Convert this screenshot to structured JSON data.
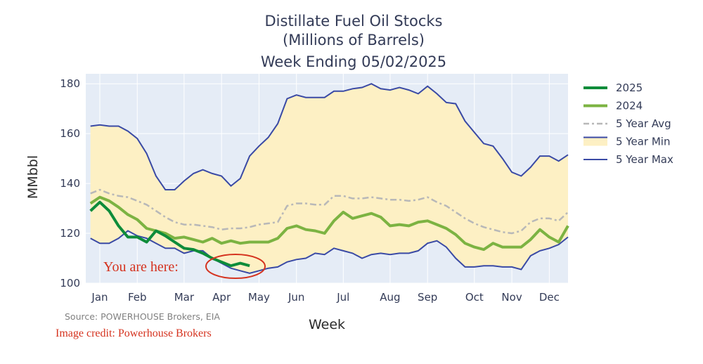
{
  "chart_data": {
    "type": "line",
    "title_lines": [
      "Distillate Fuel Oil Stocks",
      "(Millions of Barrels)",
      "Week Ending 05/02/2025"
    ],
    "xlabel": "Week",
    "ylabel": "MMbbl",
    "x_ticks": [
      "Jan",
      "Feb",
      "Mar",
      "Apr",
      "May",
      "Jun",
      "Jul",
      "Aug",
      "Sep",
      "Oct",
      "Nov",
      "Dec"
    ],
    "y_ticks": [
      100,
      120,
      140,
      160,
      180
    ],
    "ylim": [
      100,
      184
    ],
    "x_unit": "week of year",
    "xlim": [
      0.5,
      52
    ],
    "x_tick_weeks": [
      2,
      6,
      11,
      15,
      19,
      23,
      28,
      33,
      37,
      42,
      46,
      50
    ],
    "legend_position": "right",
    "weeks": [
      1,
      2,
      3,
      4,
      5,
      6,
      7,
      8,
      9,
      10,
      11,
      12,
      13,
      14,
      15,
      16,
      17,
      18,
      19,
      20,
      21,
      22,
      23,
      24,
      25,
      26,
      27,
      28,
      29,
      30,
      31,
      32,
      33,
      34,
      35,
      36,
      37,
      38,
      39,
      40,
      41,
      42,
      43,
      44,
      45,
      46,
      47,
      48,
      49,
      50,
      51,
      52
    ],
    "band": {
      "name": "5 Year Min",
      "max": [
        163,
        163.5,
        163,
        163,
        161,
        158,
        152,
        143,
        137.5,
        137.5,
        141,
        144,
        145.5,
        144,
        143,
        139,
        142,
        151,
        155,
        158.5,
        164,
        174,
        175.5,
        174.5,
        174.5,
        174.5,
        177,
        177,
        178,
        178.5,
        180,
        178,
        177.5,
        178.5,
        177.5,
        176,
        179,
        176,
        172.5,
        172,
        165,
        160.5,
        156,
        155,
        150,
        144.5,
        143,
        146.5,
        151,
        151,
        149,
        151.5
      ],
      "min": [
        118,
        116,
        116,
        118,
        121,
        119,
        118,
        116,
        114,
        114,
        112,
        113,
        113,
        110,
        108,
        106,
        105,
        104,
        105,
        106,
        106.5,
        108.5,
        109.5,
        110,
        112,
        111.5,
        114,
        113,
        112,
        110,
        111.5,
        112,
        111.5,
        112,
        112,
        113,
        116,
        117,
        114.5,
        110,
        106.5,
        106.5,
        107,
        107,
        106.5,
        106.5,
        105.5,
        111,
        113,
        114,
        115.5,
        118.5
      ]
    },
    "series": [
      {
        "name": "2025",
        "color": "#0e8c3a",
        "values": [
          129,
          132.5,
          129,
          123,
          118.5,
          118.5,
          116.5,
          121,
          119,
          116.5,
          114,
          113.5,
          112,
          110,
          108.5,
          107,
          108,
          107
        ]
      },
      {
        "name": "2024",
        "color": "#7cb342",
        "values": [
          132,
          134.5,
          133,
          130.5,
          127.5,
          125.5,
          122,
          121,
          120,
          118,
          118.5,
          117.5,
          116.5,
          118,
          116,
          117,
          116,
          116.5,
          116.5,
          116.5,
          118,
          122,
          123,
          121.5,
          121,
          120,
          125,
          128.5,
          126,
          127,
          128,
          126.5,
          123,
          123.5,
          123,
          124.5,
          125,
          123.5,
          122,
          119.5,
          116,
          114.5,
          113.5,
          116,
          114.5,
          114.5,
          114.5,
          117.5,
          121.5,
          118.5,
          116.5,
          123
        ]
      },
      {
        "name": "5 Year Avg",
        "color": "#b8b8b8",
        "dash": true,
        "values": [
          136,
          137.5,
          136,
          135,
          134.5,
          133,
          131.5,
          129,
          126.5,
          124.5,
          123.5,
          123.5,
          123,
          122.5,
          121.5,
          122,
          122,
          122.5,
          123.5,
          124,
          124.5,
          131,
          132,
          132,
          131.5,
          131.5,
          135,
          135,
          134,
          134,
          134.5,
          134,
          133.5,
          133.5,
          133,
          133.5,
          134.5,
          132.5,
          131,
          128.5,
          126,
          124,
          122.5,
          121.5,
          120.5,
          120,
          121,
          124.5,
          126,
          126,
          125,
          128.5
        ]
      }
    ]
  },
  "legend": [
    {
      "label": "2025",
      "color": "#0e8c3a",
      "style": "solid"
    },
    {
      "label": "2024",
      "color": "#7cb342",
      "style": "solid"
    },
    {
      "label": "5 Year Avg",
      "color": "#b8b8b8",
      "style": "dash"
    },
    {
      "label": "5 Year Min",
      "color": "#3a4aa5",
      "style": "band"
    },
    {
      "label": "5 Year Max",
      "color": "#3a4aa5",
      "style": "solid"
    }
  ],
  "colors": {
    "plot_bg": "#e5ecf6",
    "band_fill": "#fdf0c4",
    "minmax_line": "#3a4aa5",
    "annotation": "#d5331f"
  },
  "source_text": "Source: POWERHOUSE Brokers, EIA",
  "annotation_text": "You are here:",
  "image_credit": "Image credit: Powerhouse Brokers"
}
